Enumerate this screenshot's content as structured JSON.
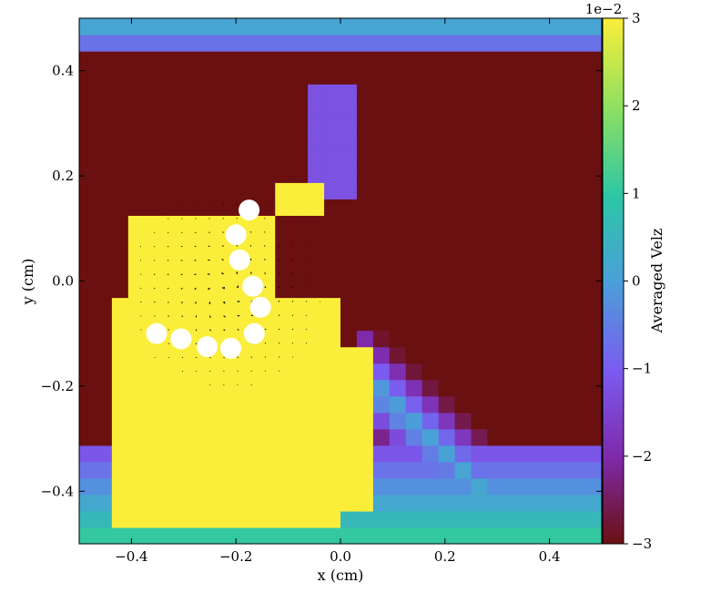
{
  "chart_data": {
    "type": "heatmap",
    "subtype": "heatmap with quiver overlay",
    "title": "",
    "xlabel": "x  (cm)",
    "ylabel": "y  (cm)",
    "xlim": [
      -0.5,
      0.5
    ],
    "ylim": [
      -0.5,
      0.5
    ],
    "xticks": [
      -0.4,
      -0.2,
      0.0,
      0.2,
      0.4
    ],
    "xtick_labels": [
      "−0.4",
      "−0.2",
      "0.0",
      "0.2",
      "0.4"
    ],
    "yticks": [
      -0.4,
      -0.2,
      0.0,
      0.2,
      0.4
    ],
    "ytick_labels": [
      "−0.4",
      "−0.2",
      "0.0",
      "0.2",
      "0.4"
    ],
    "grid": false,
    "colorbar": {
      "label": "Averaged Velz",
      "multiplier": "1e−2",
      "range": [
        -3,
        3
      ],
      "ticks": [
        3,
        2,
        1,
        0,
        -1,
        -2,
        -3
      ],
      "tick_labels": [
        "3",
        "2",
        "1",
        "0",
        "−1",
        "−2",
        "−3"
      ],
      "colormap": [
        "#6b1010",
        "#7f28a8",
        "#7a5cf0",
        "#4aa0d8",
        "#2cc6a6",
        "#8ee060",
        "#fbee3a"
      ]
    },
    "cilia_markers": [
      {
        "x": -0.175,
        "y": 0.135
      },
      {
        "x": -0.2,
        "y": 0.088
      },
      {
        "x": -0.193,
        "y": 0.04
      },
      {
        "x": -0.168,
        "y": -0.01
      },
      {
        "x": -0.153,
        "y": -0.05
      },
      {
        "x": -0.165,
        "y": -0.1
      },
      {
        "x": -0.21,
        "y": -0.128
      },
      {
        "x": -0.255,
        "y": -0.125
      },
      {
        "x": -0.305,
        "y": -0.11
      },
      {
        "x": -0.352,
        "y": -0.1
      }
    ],
    "regions_note_values": {
      "background": -3,
      "positive_lobe": 3
    }
  }
}
